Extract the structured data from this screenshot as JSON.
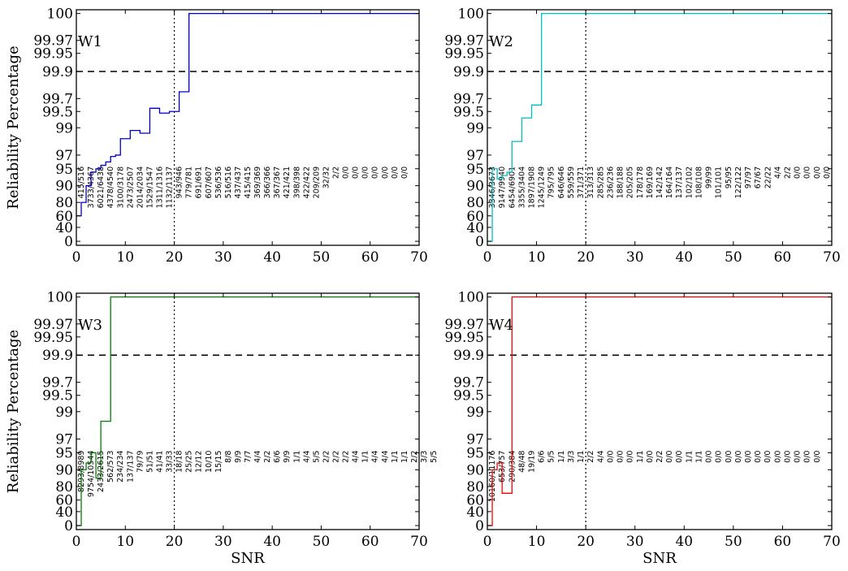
{
  "chart_data": [
    {
      "type": "line",
      "panel": "W1",
      "color": "#0000cc",
      "xlabel": "",
      "ylabel": "Reliability Percentage",
      "xlim": [
        0,
        70
      ],
      "xticks": [
        "0",
        "10",
        "20",
        "30",
        "40",
        "50",
        "60",
        "70"
      ],
      "yticks": [
        "0",
        "40",
        "60",
        "80",
        "90",
        "95",
        "97",
        "99",
        "99.5",
        "99.7",
        "99.9",
        "99.95",
        "99.97",
        "100"
      ],
      "x": [
        0,
        1,
        2,
        3,
        4,
        5,
        6,
        7,
        8,
        9,
        10,
        11,
        12,
        13,
        14,
        15,
        16,
        17,
        18,
        19,
        20,
        21,
        22,
        23,
        24,
        70
      ],
      "y": [
        60,
        80,
        90,
        94,
        95,
        95.5,
        96,
        96.8,
        97,
        98.2,
        98.2,
        98.8,
        98.8,
        98.6,
        98.6,
        99.55,
        99.55,
        99.45,
        99.45,
        99.5,
        99.5,
        99.75,
        99.75,
        100,
        100,
        100
      ],
      "counts": [
        "415/516",
        "3733/4367",
        "6021/6438",
        "4378/4540",
        "3100/3178",
        "2473/2507",
        "2014/2034",
        "1529/1547",
        "1311/1316",
        "1132/1137",
        "943/946",
        "779/781",
        "691/691",
        "607/607",
        "536/536",
        "516/516",
        "437/437",
        "415/415",
        "369/369",
        "366/366",
        "367/367",
        "421/421",
        "398/398",
        "422/422",
        "209/209",
        "32/32",
        "2/2",
        "0/0",
        "0/0",
        "0/0",
        "0/0",
        "0/0",
        "0/0",
        "0/0"
      ]
    },
    {
      "type": "line",
      "panel": "W2",
      "color": "#00bfbf",
      "xlabel": "",
      "ylabel": "",
      "xlim": [
        0,
        70
      ],
      "xticks": [
        "0",
        "10",
        "20",
        "30",
        "40",
        "50",
        "60",
        "70"
      ],
      "yticks": [
        "0",
        "40",
        "60",
        "80",
        "90",
        "95",
        "97",
        "99",
        "99.5",
        "99.7",
        "99.9",
        "99.95",
        "99.97",
        "100"
      ],
      "x": [
        0,
        1,
        2,
        3,
        4,
        5,
        6,
        7,
        8,
        9,
        10,
        11,
        12,
        70
      ],
      "y": [
        0,
        95,
        92,
        93,
        94,
        98,
        98,
        99.3,
        99.3,
        99.6,
        99.6,
        100,
        100,
        100
      ],
      "counts": [
        "3346/3673",
        "9147/9940",
        "6454/6901",
        "3355/3404",
        "1897/1908",
        "1245/1249",
        "795/795",
        "646/646",
        "559/559",
        "371/371",
        "313/313",
        "285/285",
        "236/236",
        "188/188",
        "205/205",
        "178/178",
        "169/169",
        "142/142",
        "164/164",
        "137/137",
        "102/102",
        "108/108",
        "99/99",
        "101/101",
        "95/95",
        "122/122",
        "97/97",
        "67/67",
        "22/22",
        "4/4",
        "2/2",
        "0/0",
        "0/0",
        "0/0",
        "0/0"
      ]
    },
    {
      "type": "line",
      "panel": "W3",
      "color": "#008000",
      "xlabel": "SNR",
      "ylabel": "Reliability Percentage",
      "xlim": [
        0,
        70
      ],
      "xticks": [
        "0",
        "10",
        "20",
        "30",
        "40",
        "50",
        "60",
        "70"
      ],
      "yticks": [
        "0",
        "40",
        "60",
        "80",
        "90",
        "95",
        "97",
        "99",
        "99.5",
        "99.7",
        "99.9",
        "99.95",
        "99.97",
        "100"
      ],
      "x": [
        0,
        1,
        2,
        3,
        4,
        5,
        6,
        7,
        8,
        70
      ],
      "y": [
        0,
        90,
        92,
        95,
        85,
        98.3,
        98.3,
        100,
        100,
        100
      ],
      "counts": [
        "8293/8989",
        "9754/10544",
        "2433/2615",
        "562/573",
        "234/234",
        "137/137",
        "79/79",
        "51/51",
        "41/41",
        "33/33",
        "18/18",
        "25/25",
        "12/12",
        "10/10",
        "15/15",
        "8/8",
        "9/9",
        "7/7",
        "4/4",
        "2/2",
        "6/6",
        "9/9",
        "1/1",
        "4/4",
        "5/5",
        "2/2",
        "2/2",
        "2/2",
        "4/4",
        "1/1",
        "4/4",
        "4/4",
        "1/1",
        "1/1",
        "2/2",
        "3/3",
        "5/5"
      ]
    },
    {
      "type": "line",
      "panel": "W4",
      "color": "#ff0000",
      "xlabel": "SNR",
      "ylabel": "",
      "xlim": [
        0,
        70
      ],
      "xticks": [
        "0",
        "10",
        "20",
        "30",
        "40",
        "50",
        "60",
        "70"
      ],
      "yticks": [
        "0",
        "40",
        "60",
        "80",
        "90",
        "95",
        "97",
        "99",
        "99.5",
        "99.7",
        "99.9",
        "99.95",
        "99.97",
        "100"
      ],
      "x": [
        0,
        1,
        2,
        3,
        4,
        5,
        6,
        70
      ],
      "y": [
        0,
        90,
        92,
        70,
        70,
        100,
        100,
        100
      ],
      "counts": [
        "10160/11176",
        "653/757",
        "290/384",
        "48/48",
        "19/19",
        "6/6",
        "5/5",
        "1/1",
        "3/3",
        "1/1",
        "2/2",
        "4/4",
        "0/0",
        "0/0",
        "0/0",
        "1/1",
        "0/0",
        "2/2",
        "0/0",
        "0/0",
        "1/1",
        "1/1",
        "0/0",
        "0/0",
        "0/0",
        "0/0",
        "0/0",
        "0/0",
        "0/0",
        "0/0",
        "0/0",
        "0/0",
        "0/0",
        "0/0"
      ]
    }
  ],
  "reference_lines": {
    "threshold_y": "99.9",
    "threshold_style": "dashed",
    "snr_x": "20",
    "snr_style": "dotted"
  }
}
